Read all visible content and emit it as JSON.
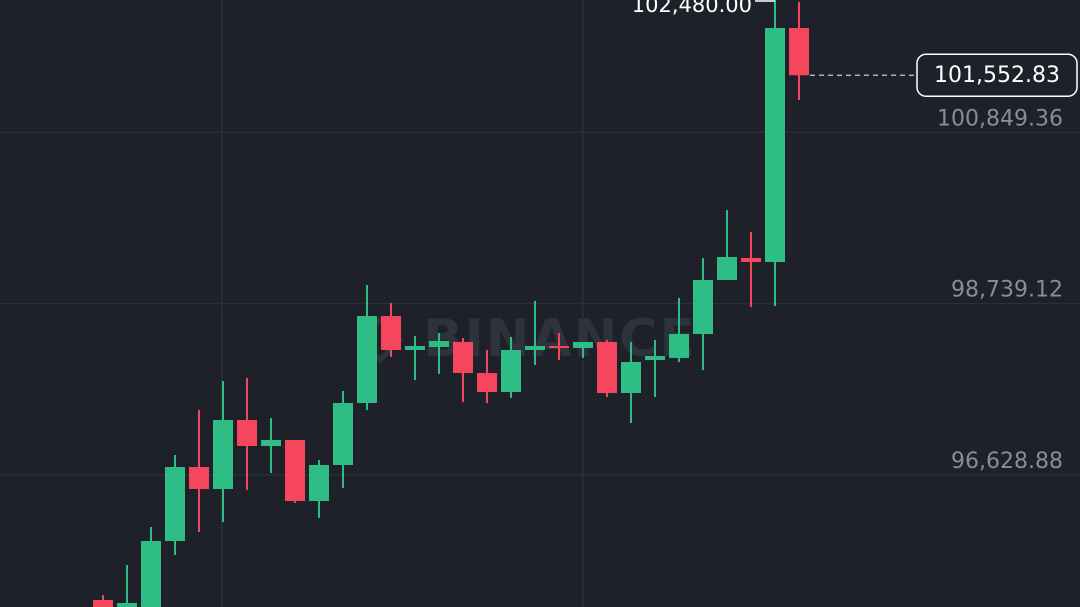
{
  "chart_data": {
    "type": "candlestick",
    "watermark": "BINANCE",
    "up_color": "#2ebd85",
    "down_color": "#f6465d",
    "open": [
      95086,
      94950,
      94900,
      95813,
      96725,
      96454,
      97304,
      96984,
      97058,
      96306,
      96750,
      97514,
      98586,
      98167,
      98204,
      98266,
      97883,
      97650,
      98167,
      98216,
      98192,
      98266,
      97637,
      98044,
      98069,
      98364,
      99030,
      99301,
      99251,
      102135
    ],
    "high": [
      95147,
      95517,
      95986,
      96873,
      97428,
      97785,
      97822,
      97329,
      97058,
      96811,
      97662,
      98968,
      98746,
      98339,
      98376,
      98315,
      98167,
      98327,
      98771,
      98376,
      98266,
      98290,
      98266,
      98290,
      98808,
      99301,
      99892,
      99621,
      102480,
      102455
    ],
    "low": [
      94900,
      94900,
      94850,
      95641,
      95924,
      96048,
      96442,
      96651,
      96282,
      96097,
      96466,
      97428,
      98081,
      97797,
      97871,
      97526,
      97514,
      97576,
      97982,
      98044,
      98069,
      97588,
      97267,
      97588,
      98019,
      97920,
      99030,
      98697,
      98709,
      101248
    ],
    "close": [
      94950,
      95049,
      95813,
      96725,
      96454,
      97304,
      96984,
      97058,
      96306,
      96750,
      97514,
      98586,
      98167,
      98216,
      98278,
      97883,
      97650,
      98167,
      98216,
      98192,
      98266,
      97637,
      98019,
      98093,
      98364,
      99030,
      99313,
      99251,
      102135,
      101552.83
    ],
    "ylim": [
      95000,
      102480
    ],
    "yticks": [
      {
        "value": 96628.88,
        "label": "96,628.88"
      },
      {
        "value": 98739.12,
        "label": "98,739.12"
      },
      {
        "value": 100849.36,
        "label": "100,849.36"
      }
    ],
    "grid": true,
    "last_price": {
      "value": 101552.83,
      "label": "101,552.83"
    },
    "max_label": {
      "value": 102480,
      "label": "102,480.00"
    }
  }
}
